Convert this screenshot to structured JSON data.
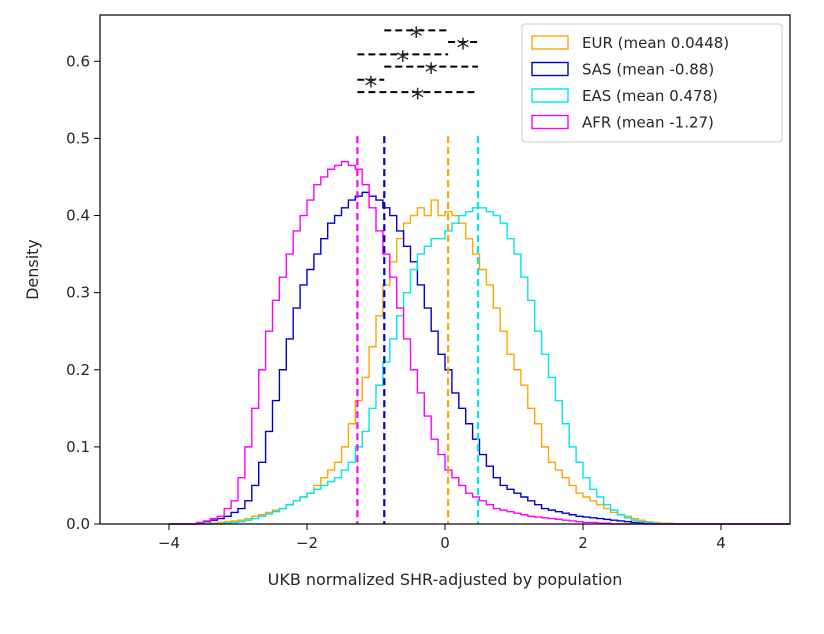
{
  "chart_data": {
    "type": "histogram",
    "xlabel": "UKB normalized SHR-adjusted by population",
    "ylabel": "Density",
    "xlim": [
      -5,
      5
    ],
    "ylim": [
      0,
      0.66
    ],
    "xticks": [
      -4,
      -2,
      0,
      2,
      4
    ],
    "xtick_labels": [
      "−4",
      "−2",
      "0",
      "2",
      "4"
    ],
    "yticks": [
      0.0,
      0.1,
      0.2,
      0.3,
      0.4,
      0.5,
      0.6
    ],
    "ytick_labels": [
      "0.0",
      "0.1",
      "0.2",
      "0.3",
      "0.4",
      "0.5",
      "0.6"
    ],
    "grid": false,
    "legend_position": "top-right",
    "bin_edges": [
      -4.0,
      -3.9,
      -3.8,
      -3.7,
      -3.6,
      -3.5,
      -3.4,
      -3.3,
      -3.2,
      -3.1,
      -3.0,
      -2.9,
      -2.8,
      -2.7,
      -2.6,
      -2.5,
      -2.4,
      -2.3,
      -2.2,
      -2.1,
      -2.0,
      -1.9,
      -1.8,
      -1.7,
      -1.6,
      -1.5,
      -1.4,
      -1.3,
      -1.2,
      -1.1,
      -1.0,
      -0.9,
      -0.8,
      -0.7,
      -0.6,
      -0.5,
      -0.4,
      -0.3,
      -0.2,
      -0.1,
      0.0,
      0.1,
      0.2,
      0.3,
      0.4,
      0.5,
      0.6,
      0.7,
      0.8,
      0.9,
      1.0,
      1.1,
      1.2,
      1.3,
      1.4,
      1.5,
      1.6,
      1.7,
      1.8,
      1.9,
      2.0,
      2.1,
      2.2,
      2.3,
      2.4,
      2.5,
      2.6,
      2.7,
      2.8,
      2.9,
      3.0,
      3.1,
      3.2,
      3.3,
      3.4,
      3.5,
      3.6,
      3.7,
      3.8,
      3.9,
      4.0,
      4.1,
      4.2,
      4.3,
      4.4,
      4.5,
      4.6,
      4.7,
      4.8,
      4.9,
      5.0
    ],
    "series": [
      {
        "name": "EUR (mean 0.0448)",
        "color": "#FFA500",
        "mean": 0.0448,
        "values": [
          0,
          0,
          0,
          0,
          0,
          0,
          0.001,
          0.002,
          0.003,
          0.004,
          0.005,
          0.007,
          0.01,
          0.012,
          0.015,
          0.018,
          0.02,
          0.025,
          0.03,
          0.035,
          0.04,
          0.05,
          0.06,
          0.07,
          0.08,
          0.1,
          0.13,
          0.16,
          0.19,
          0.23,
          0.27,
          0.31,
          0.34,
          0.37,
          0.39,
          0.4,
          0.41,
          0.4,
          0.42,
          0.4,
          0.405,
          0.4,
          0.39,
          0.37,
          0.35,
          0.33,
          0.31,
          0.28,
          0.25,
          0.22,
          0.2,
          0.18,
          0.15,
          0.13,
          0.1,
          0.08,
          0.07,
          0.06,
          0.05,
          0.04,
          0.035,
          0.03,
          0.025,
          0.02,
          0.015,
          0.012,
          0.01,
          0.007,
          0.005,
          0.003,
          0.002,
          0.001,
          0.001,
          0,
          0,
          0,
          0,
          0,
          0,
          0,
          0,
          0,
          0,
          0,
          0,
          0,
          0,
          0,
          0,
          0
        ]
      },
      {
        "name": "SAS (mean -0.88)",
        "color": "#0000CD",
        "mean": -0.88,
        "values": [
          0,
          0,
          0,
          0,
          0.001,
          0.003,
          0.005,
          0.007,
          0.01,
          0.015,
          0.02,
          0.03,
          0.05,
          0.08,
          0.12,
          0.16,
          0.2,
          0.24,
          0.28,
          0.31,
          0.33,
          0.35,
          0.37,
          0.39,
          0.4,
          0.41,
          0.42,
          0.425,
          0.43,
          0.425,
          0.42,
          0.41,
          0.4,
          0.38,
          0.36,
          0.34,
          0.31,
          0.28,
          0.25,
          0.22,
          0.2,
          0.17,
          0.15,
          0.13,
          0.11,
          0.09,
          0.075,
          0.06,
          0.05,
          0.045,
          0.04,
          0.035,
          0.03,
          0.025,
          0.02,
          0.018,
          0.016,
          0.014,
          0.012,
          0.01,
          0.009,
          0.008,
          0.007,
          0.006,
          0.005,
          0.004,
          0.003,
          0.002,
          0.001,
          0.001,
          0,
          0,
          0,
          0,
          0,
          0,
          0,
          0,
          0,
          0,
          0,
          0,
          0,
          0,
          0,
          0,
          0,
          0,
          0,
          0
        ]
      },
      {
        "name": "EAS (mean 0.478)",
        "color": "#00E5EE",
        "mean": 0.478,
        "values": [
          0,
          0,
          0,
          0,
          0,
          0,
          0,
          0,
          0.001,
          0.002,
          0.003,
          0.005,
          0.007,
          0.01,
          0.013,
          0.016,
          0.02,
          0.025,
          0.03,
          0.035,
          0.04,
          0.045,
          0.05,
          0.055,
          0.06,
          0.07,
          0.08,
          0.1,
          0.12,
          0.15,
          0.18,
          0.21,
          0.24,
          0.27,
          0.3,
          0.33,
          0.35,
          0.36,
          0.37,
          0.37,
          0.38,
          0.39,
          0.4,
          0.405,
          0.41,
          0.41,
          0.405,
          0.4,
          0.39,
          0.37,
          0.35,
          0.32,
          0.29,
          0.25,
          0.22,
          0.19,
          0.16,
          0.13,
          0.1,
          0.08,
          0.06,
          0.045,
          0.035,
          0.025,
          0.018,
          0.012,
          0.008,
          0.005,
          0.003,
          0.002,
          0.001,
          0,
          0,
          0,
          0,
          0,
          0,
          0,
          0,
          0,
          0,
          0,
          0,
          0,
          0,
          0,
          0,
          0,
          0,
          0
        ]
      },
      {
        "name": "AFR (mean -1.27)",
        "color": "#FF00FF",
        "mean": -1.27,
        "values": [
          0,
          0,
          0,
          0,
          0.002,
          0.004,
          0.007,
          0.01,
          0.02,
          0.03,
          0.06,
          0.1,
          0.15,
          0.2,
          0.25,
          0.29,
          0.32,
          0.35,
          0.38,
          0.4,
          0.42,
          0.44,
          0.45,
          0.46,
          0.465,
          0.47,
          0.465,
          0.46,
          0.44,
          0.41,
          0.38,
          0.35,
          0.32,
          0.28,
          0.24,
          0.2,
          0.17,
          0.14,
          0.11,
          0.09,
          0.07,
          0.06,
          0.05,
          0.04,
          0.035,
          0.03,
          0.025,
          0.02,
          0.018,
          0.016,
          0.014,
          0.012,
          0.01,
          0.009,
          0.008,
          0.007,
          0.006,
          0.005,
          0.004,
          0.003,
          0.002,
          0.002,
          0.001,
          0.001,
          0,
          0,
          0,
          0,
          0,
          0,
          0,
          0,
          0,
          0,
          0,
          0,
          0,
          0,
          0,
          0,
          0,
          0,
          0,
          0,
          0,
          0,
          0,
          0,
          0,
          0
        ]
      }
    ],
    "mean_lines": [
      {
        "x": 0.0448,
        "color": "#FFA500"
      },
      {
        "x": -0.88,
        "color": "#0000CD"
      },
      {
        "x": 0.478,
        "color": "#00E5EE"
      },
      {
        "x": -1.27,
        "color": "#FF00FF"
      }
    ],
    "significance_brackets": [
      {
        "x1": -0.88,
        "x2": 0.0448,
        "y": 0.64,
        "label": "*"
      },
      {
        "x1": 0.0448,
        "x2": 0.478,
        "y": 0.625,
        "label": "*"
      },
      {
        "x1": -1.27,
        "x2": 0.0448,
        "y": 0.609,
        "label": "*"
      },
      {
        "x1": -0.88,
        "x2": 0.478,
        "y": 0.593,
        "label": "*"
      },
      {
        "x1": -1.27,
        "x2": -0.88,
        "y": 0.576,
        "label": "*"
      },
      {
        "x1": -1.27,
        "x2": 0.478,
        "y": 0.56,
        "label": "*"
      }
    ]
  }
}
